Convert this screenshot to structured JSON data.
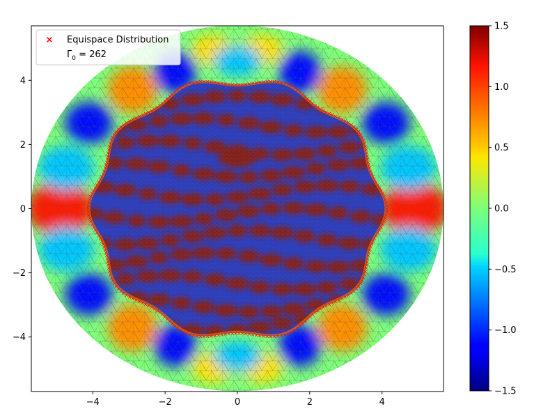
{
  "chart_data": {
    "type": "heatmap",
    "title": "",
    "xlabel": "",
    "ylabel": "",
    "xlim": [
      -5.7,
      5.7
    ],
    "ylim": [
      -5.7,
      5.7
    ],
    "x_ticks": [
      -4,
      -2,
      0,
      2,
      4
    ],
    "y_ticks": [
      -4,
      -2,
      0,
      2,
      4
    ],
    "x_tick_labels": [
      "−4",
      "−2",
      "0",
      "2",
      "4"
    ],
    "y_tick_labels": [
      "−4",
      "−2",
      "0",
      "2",
      "4"
    ],
    "colormap": "jet",
    "color_range": [
      -1.5,
      1.5
    ],
    "colorbar_ticks": [
      1.5,
      1.0,
      0.5,
      0.0,
      -0.5,
      -1.0,
      -1.5
    ],
    "colorbar_tick_labels": [
      "1.5",
      "1.0",
      "0.5",
      "0.0",
      "−0.5",
      "−1.0",
      "−1.5"
    ],
    "domain_radius": 5.7,
    "inner_boundary_mean_radius": 4.0,
    "inner_boundary_lobes": 10,
    "inner_boundary_points": 262,
    "legend": {
      "placement": "top-left",
      "entries": [
        {
          "marker": "×",
          "color": "#ff0000",
          "label": "Equispace Distribution"
        },
        {
          "marker": "",
          "label_main": "Γ",
          "label_sub": "0",
          "label_rest": " = 262"
        }
      ]
    },
    "mesh": "triangulated",
    "grid": false
  }
}
